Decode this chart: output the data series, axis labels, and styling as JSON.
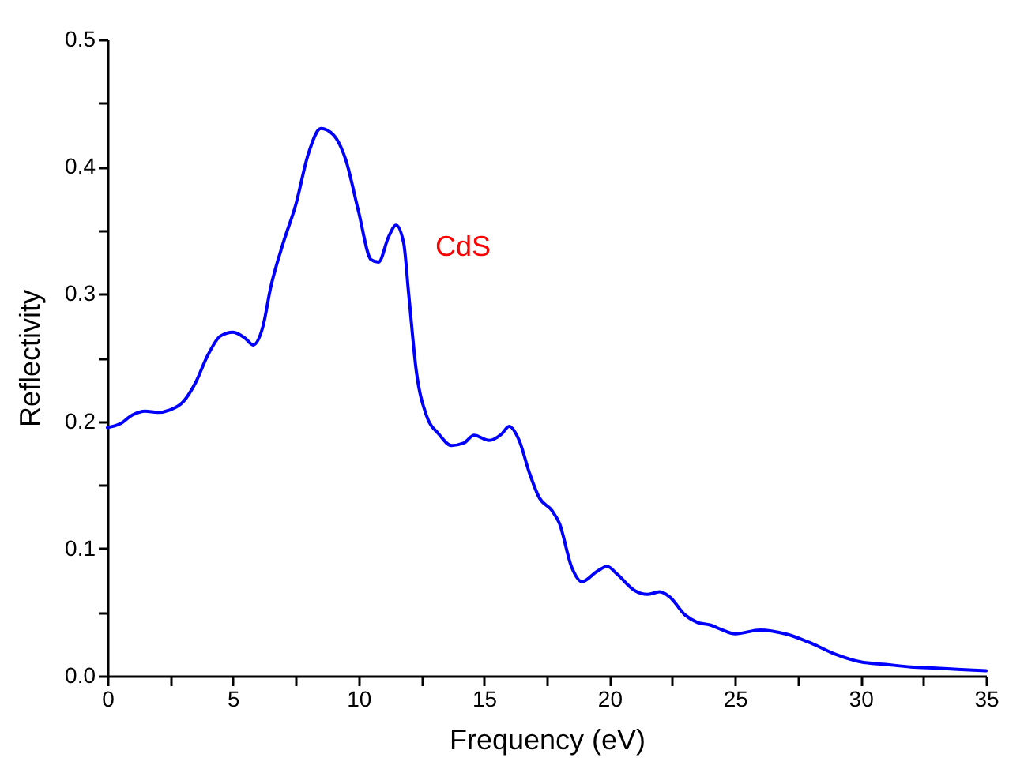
{
  "chart_data": {
    "type": "line",
    "xlabel": "Frequency (eV)",
    "ylabel": "Reflectivity",
    "x": [
      0,
      0.5,
      1,
      1.5,
      2,
      2.5,
      3,
      3.5,
      4,
      4.5,
      5,
      5.5,
      5.8,
      6.2,
      6.5,
      7,
      7.5,
      8,
      8.5,
      9,
      9.5,
      10,
      10.5,
      10.8,
      11.2,
      11.5,
      11.8,
      12,
      12.3,
      12.7,
      13.2,
      13.7,
      14.2,
      14.6,
      15.2,
      15.7,
      16,
      16.4,
      16.8,
      17.2,
      17.7,
      18,
      18.5,
      18.9,
      19.5,
      19.9,
      20.3,
      21,
      21.5,
      22,
      22.4,
      23,
      23.5,
      24,
      24.5,
      25,
      26,
      27,
      28,
      29,
      30,
      31,
      32,
      33,
      34,
      35
    ],
    "series": [
      {
        "color": "#0000ff",
        "values": [
          0.195,
          0.198,
          0.205,
          0.208,
          0.207,
          0.209,
          0.215,
          0.23,
          0.252,
          0.267,
          0.27,
          0.265,
          0.26,
          0.275,
          0.305,
          0.34,
          0.37,
          0.41,
          0.43,
          0.425,
          0.405,
          0.365,
          0.327,
          0.325,
          0.345,
          0.354,
          0.34,
          0.3,
          0.24,
          0.205,
          0.19,
          0.181,
          0.183,
          0.189,
          0.185,
          0.19,
          0.196,
          0.185,
          0.16,
          0.14,
          0.13,
          0.12,
          0.085,
          0.074,
          0.082,
          0.086,
          0.08,
          0.067,
          0.064,
          0.066,
          0.062,
          0.048,
          0.042,
          0.04,
          0.036,
          0.033,
          0.036,
          0.033,
          0.026,
          0.017,
          0.011,
          0.009,
          0.007,
          0.006,
          0.005,
          0.004
        ]
      }
    ],
    "annotations": [
      "CdS"
    ],
    "xlim": [
      0,
      35
    ],
    "xticks": [
      0,
      {
        "value": 2.5,
        "label": null
      },
      5,
      {
        "value": 7.5,
        "label": null
      },
      10,
      {
        "value": 12.5,
        "label": null
      },
      15,
      {
        "value": 17.5,
        "label": null
      },
      20,
      {
        "value": 22.5,
        "label": null
      },
      25,
      {
        "value": 27.5,
        "label": null
      },
      30,
      {
        "value": 32.5,
        "label": null
      },
      35
    ],
    "ylim": [
      0,
      0.5
    ],
    "yticks": [
      {
        "value": 0,
        "label": "0.0"
      },
      {
        "value": 0.05,
        "label": null
      },
      0.1,
      {
        "value": 0.15,
        "label": null
      },
      0.2,
      {
        "value": 0.25,
        "label": null
      },
      0.3,
      {
        "value": 0.35,
        "label": null
      },
      0.4,
      {
        "value": 0.45,
        "label": null
      },
      0.5
    ],
    "grid": false,
    "legend": false,
    "line_style": "solid",
    "marker": "none"
  }
}
